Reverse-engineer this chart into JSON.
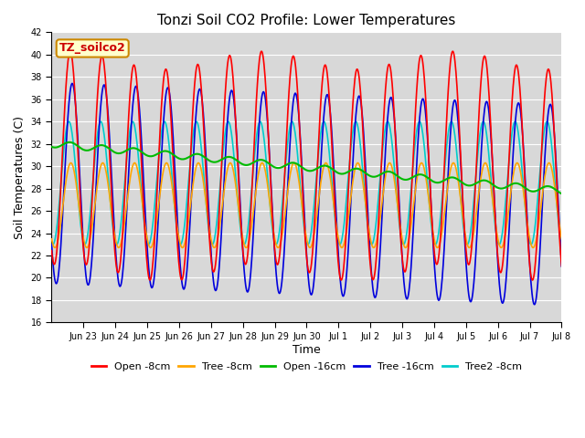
{
  "title": "Tonzi Soil CO2 Profile: Lower Temperatures",
  "ylabel": "Soil Temperatures (C)",
  "xlabel": "Time",
  "ylim": [
    16,
    42
  ],
  "yticks": [
    16,
    18,
    20,
    22,
    24,
    26,
    28,
    30,
    32,
    34,
    36,
    38,
    40,
    42
  ],
  "bg_color": "#d8d8d8",
  "fig_color": "#ffffff",
  "label_box_text": "TZ_soilco2",
  "label_box_facecolor": "#ffffcc",
  "label_box_edgecolor": "#cc8800",
  "label_box_textcolor": "#cc0000",
  "series": {
    "open8": {
      "label": "Open -8cm",
      "color": "#ff0000",
      "lw": 1.2
    },
    "tree8": {
      "label": "Tree -8cm",
      "color": "#ffa500",
      "lw": 1.2
    },
    "open16": {
      "label": "Open -16cm",
      "color": "#00bb00",
      "lw": 1.5
    },
    "tree16": {
      "label": "Tree -16cm",
      "color": "#0000dd",
      "lw": 1.2
    },
    "tree2_8": {
      "label": "Tree2 -8cm",
      "color": "#00cccc",
      "lw": 1.2
    }
  },
  "xtick_labels": [
    "Jun 23",
    "Jun 24",
    "Jun 25",
    "Jun 26",
    "Jun 27",
    "Jun 28",
    "Jun 29",
    "Jun 30",
    "Jul 1",
    "Jul 2",
    "Jul 3",
    "Jul 4",
    "Jul 5",
    "Jul 6",
    "Jul 7",
    "Jul 8"
  ],
  "xstart": 0.0,
  "xend": 16.0,
  "xtick_positions": [
    1,
    2,
    3,
    4,
    5,
    6,
    7,
    8,
    9,
    10,
    11,
    12,
    13,
    14,
    15,
    16
  ]
}
